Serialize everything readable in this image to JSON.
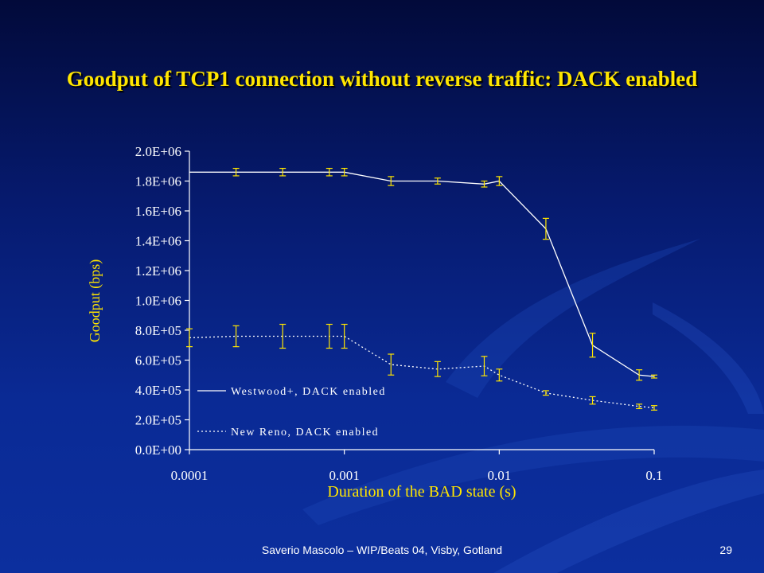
{
  "slide": {
    "title": "Goodput of TCP1 connection without reverse traffic: DACK enabled",
    "footer": "Saverio Mascolo  –  WIP/Beats 04,  Visby, Gotland",
    "page_number": "29"
  },
  "colors": {
    "title": "#ffe600",
    "series_line": "#ffffff",
    "error_bars": "#ffe600",
    "ylabel": "#ffe600",
    "background": "#0a2a95"
  },
  "chart_data": {
    "type": "line",
    "xlabel": "Duration of the BAD state (s)",
    "ylabel": "Goodput (bps)",
    "xscale": "log",
    "xlim": [
      0.0001,
      0.1
    ],
    "ylim": [
      0,
      2000000
    ],
    "xticks": [
      0.0001,
      0.001,
      0.01,
      0.1
    ],
    "xtick_labels": [
      "0.0001",
      "0.001",
      "0.01",
      "0.1"
    ],
    "yticks": [
      0,
      200000,
      400000,
      600000,
      800000,
      1000000,
      1200000,
      1400000,
      1600000,
      1800000,
      2000000
    ],
    "ytick_labels": [
      "0.0E+00",
      "2.0E+05",
      "4.0E+05",
      "6.0E+05",
      "8.0E+05",
      "1.0E+06",
      "1.2E+06",
      "1.4E+06",
      "1.6E+06",
      "1.8E+06",
      "2.0E+06"
    ],
    "grid": false,
    "legend_position": "lower-left",
    "series": [
      {
        "name": "Westwood+, DACK enabled",
        "style": "solid",
        "x": [
          0.0001,
          0.0002,
          0.0004,
          0.0008,
          0.001,
          0.002,
          0.004,
          0.008,
          0.01,
          0.02,
          0.04,
          0.08,
          0.1
        ],
        "y": [
          1860000,
          1860000,
          1860000,
          1860000,
          1860000,
          1800000,
          1800000,
          1780000,
          1800000,
          1480000,
          700000,
          500000,
          490000
        ],
        "err": [
          0,
          25000,
          25000,
          25000,
          25000,
          30000,
          20000,
          20000,
          30000,
          70000,
          80000,
          35000,
          10000
        ]
      },
      {
        "name": "New Reno, DACK enabled",
        "style": "dotted",
        "x": [
          0.0001,
          0.0002,
          0.0004,
          0.0008,
          0.001,
          0.002,
          0.004,
          0.008,
          0.01,
          0.02,
          0.04,
          0.08,
          0.1
        ],
        "y": [
          750000,
          760000,
          760000,
          760000,
          760000,
          570000,
          540000,
          560000,
          500000,
          380000,
          330000,
          290000,
          280000
        ],
        "err": [
          60000,
          70000,
          80000,
          80000,
          80000,
          70000,
          50000,
          65000,
          40000,
          15000,
          25000,
          15000,
          15000
        ]
      }
    ]
  }
}
